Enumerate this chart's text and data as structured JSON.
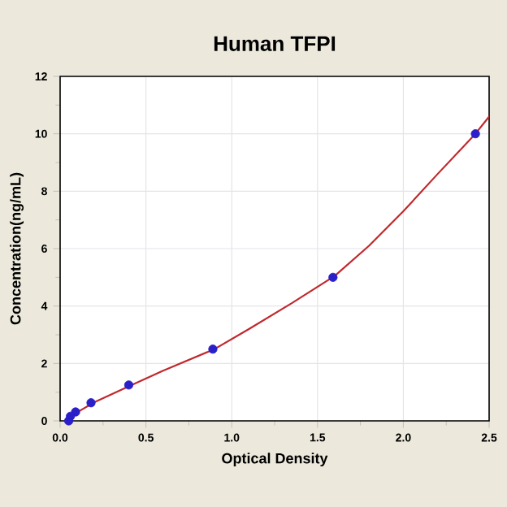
{
  "chart_data": {
    "type": "scatter",
    "title": "Human TFPI",
    "xlabel": "Optical Density",
    "ylabel": "Concentration(ng/mL)",
    "xlim": [
      0,
      2.5
    ],
    "ylim": [
      0,
      12
    ],
    "xticks": [
      {
        "value": 0,
        "label": "0.0"
      },
      {
        "value": 0.25,
        "label": null
      },
      {
        "value": 0.5,
        "label": "0.5"
      },
      {
        "value": 0.75,
        "label": null
      },
      {
        "value": 1,
        "label": "1.0"
      },
      {
        "value": 1.25,
        "label": null
      },
      {
        "value": 1.5,
        "label": "1.5"
      },
      {
        "value": 1.75,
        "label": null
      },
      {
        "value": 2,
        "label": "2.0"
      },
      {
        "value": 2.25,
        "label": null
      },
      {
        "value": 2.5,
        "label": "2.5"
      }
    ],
    "yticks": [
      0,
      {
        "value": 1,
        "label": null
      },
      2,
      {
        "value": 3,
        "label": null
      },
      4,
      {
        "value": 5,
        "label": null
      },
      6,
      {
        "value": 7,
        "label": null
      },
      8,
      {
        "value": 9,
        "label": null
      },
      10,
      {
        "value": 11,
        "label": null
      },
      12
    ],
    "grid": true,
    "series": [
      {
        "color": "#2a1fc8",
        "marker": "circle",
        "x": [
          0.05,
          0.06,
          0.09,
          0.18,
          0.4,
          0.89,
          1.59,
          2.42
        ],
        "values": [
          0,
          0.16,
          0.31,
          0.63,
          1.25,
          2.5,
          5,
          10
        ]
      },
      {
        "type": "line",
        "color": "#c0282d",
        "marker": "none",
        "line_style": "solid",
        "x": [
          0.03,
          0.1,
          0.2,
          0.4,
          0.6,
          0.9,
          1.1,
          1.35,
          1.6,
          1.8,
          2.0,
          2.2,
          2.42,
          2.5
        ],
        "values": [
          0,
          0.3,
          0.65,
          1.2,
          1.75,
          2.5,
          3.2,
          4.1,
          5.05,
          6.1,
          7.3,
          8.6,
          10,
          10.6
        ]
      }
    ]
  }
}
